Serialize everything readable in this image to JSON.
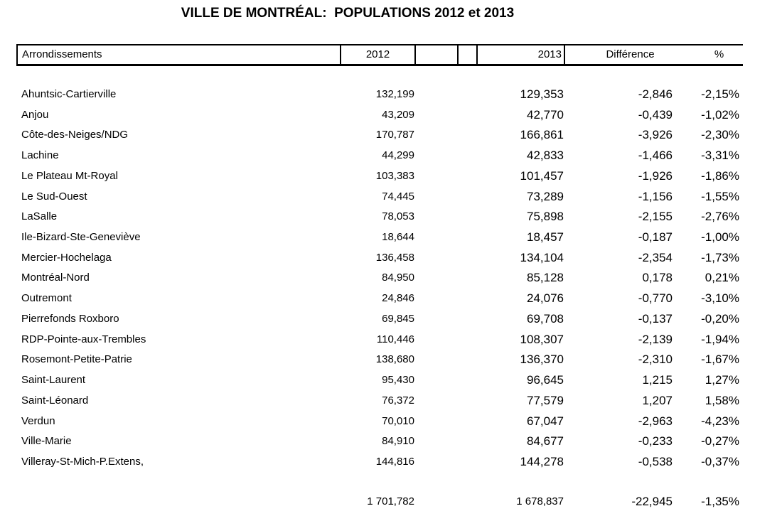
{
  "title": "VILLE DE MONTRÉAL:  POPULATIONS 2012 et 2013",
  "header": {
    "arrondissements": "Arrondissements",
    "col2012": "2012",
    "col2013": "2013",
    "difference": "Différence",
    "percent": "%"
  },
  "rows": [
    {
      "name": "Ahuntsic-Cartierville",
      "y2012": "132,199",
      "y2013": "129,353",
      "difference": "-2,846",
      "percent": "-2,15%"
    },
    {
      "name": "Anjou",
      "y2012": "43,209",
      "y2013": "42,770",
      "difference": "-0,439",
      "percent": "-1,02%"
    },
    {
      "name": "Côte-des-Neiges/NDG",
      "y2012": "170,787",
      "y2013": "166,861",
      "difference": "-3,926",
      "percent": "-2,30%"
    },
    {
      "name": "Lachine",
      "y2012": "44,299",
      "y2013": "42,833",
      "difference": "-1,466",
      "percent": "-3,31%"
    },
    {
      "name": "Le Plateau Mt-Royal",
      "y2012": "103,383",
      "y2013": "101,457",
      "difference": "-1,926",
      "percent": "-1,86%"
    },
    {
      "name": "Le Sud-Ouest",
      "y2012": "74,445",
      "y2013": "73,289",
      "difference": "-1,156",
      "percent": "-1,55%"
    },
    {
      "name": "LaSalle",
      "y2012": "78,053",
      "y2013": "75,898",
      "difference": "-2,155",
      "percent": "-2,76%"
    },
    {
      "name": "Ile-Bizard-Ste-Geneviève",
      "y2012": "18,644",
      "y2013": "18,457",
      "difference": "-0,187",
      "percent": "-1,00%"
    },
    {
      "name": "Mercier-Hochelaga",
      "y2012": "136,458",
      "y2013": "134,104",
      "difference": "-2,354",
      "percent": "-1,73%"
    },
    {
      "name": "Montréal-Nord",
      "y2012": "84,950",
      "y2013": "85,128",
      "difference": "0,178",
      "percent": "0,21%"
    },
    {
      "name": "Outremont",
      "y2012": "24,846",
      "y2013": "24,076",
      "difference": "-0,770",
      "percent": "-3,10%"
    },
    {
      "name": "Pierrefonds Roxboro",
      "y2012": "69,845",
      "y2013": "69,708",
      "difference": "-0,137",
      "percent": "-0,20%"
    },
    {
      "name": "RDP-Pointe-aux-Trembles",
      "y2012": "110,446",
      "y2013": "108,307",
      "difference": "-2,139",
      "percent": "-1,94%"
    },
    {
      "name": "Rosemont-Petite-Patrie",
      "y2012": "138,680",
      "y2013": "136,370",
      "difference": "-2,310",
      "percent": "-1,67%"
    },
    {
      "name": "Saint-Laurent",
      "y2012": "95,430",
      "y2013": "96,645",
      "difference": "1,215",
      "percent": "1,27%"
    },
    {
      "name": "Saint-Léonard",
      "y2012": "76,372",
      "y2013": "77,579",
      "difference": "1,207",
      "percent": "1,58%"
    },
    {
      "name": "Verdun",
      "y2012": "70,010",
      "y2013": "67,047",
      "difference": "-2,963",
      "percent": "-4,23%"
    },
    {
      "name": "Ville-Marie",
      "y2012": "84,910",
      "y2013": "84,677",
      "difference": "-0,233",
      "percent": "-0,27%"
    },
    {
      "name": "Villeray-St-Mich-P.Extens,",
      "y2012": "144,816",
      "y2013": "144,278",
      "difference": "-0,538",
      "percent": "-0,37%"
    }
  ],
  "totals": {
    "y2012": "1 701,782",
    "y2013": "1 678,837",
    "difference": "-22,945",
    "percent": "-1,35%"
  },
  "colors": {
    "text": "#000000",
    "border": "#000000",
    "background": "#ffffff"
  }
}
